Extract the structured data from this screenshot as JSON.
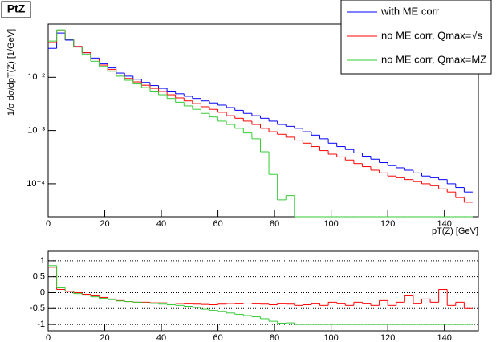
{
  "chart_data": [
    {
      "type": "histogram",
      "title": "PtZ",
      "y_label": "1/σ dσ/dpT(Z) [1/GeV]",
      "x_label": "pT(Z) [GeV]",
      "log_y": true,
      "legend": "top-right",
      "bins": [
        0,
        3,
        6,
        9,
        12,
        15,
        18,
        21,
        24,
        27,
        30,
        33,
        36,
        39,
        42,
        45,
        48,
        51,
        54,
        57,
        60,
        63,
        66,
        69,
        72,
        75,
        78,
        81,
        84,
        87,
        90,
        93,
        96,
        99,
        102,
        105,
        108,
        111,
        114,
        117,
        120,
        123,
        126,
        129,
        132,
        135,
        138,
        141,
        144,
        147,
        150
      ],
      "xlim": [
        0,
        152
      ],
      "xticks": [
        0,
        20,
        40,
        60,
        80,
        100,
        120,
        140
      ],
      "ylim": [
        2.4e-05,
        0.1
      ],
      "yticks": [
        {
          "value": 0.0001,
          "label": "10⁻⁴"
        },
        {
          "value": 0.001,
          "label": "10⁻³"
        },
        {
          "value": 0.01,
          "label": "10⁻²"
        }
      ],
      "series": [
        {
          "name": "with ME corr",
          "color": "#0000ff",
          "values": [
            0.035,
            0.068,
            0.05,
            0.038,
            0.029,
            0.023,
            0.018,
            0.015,
            0.012,
            0.0105,
            0.0092,
            0.008,
            0.007,
            0.0062,
            0.0055,
            0.0049,
            0.0044,
            0.004,
            0.0036,
            0.0033,
            0.003,
            0.0027,
            0.0024,
            0.0021,
            0.0019,
            0.0017,
            0.0015,
            0.0013,
            0.0012,
            0.0011,
            0.00095,
            0.00082,
            0.0007,
            0.00058,
            0.0005,
            0.00044,
            0.00038,
            0.00033,
            0.00029,
            0.00025,
            0.00022,
            0.0002,
            0.00018,
            0.00016,
            0.00014,
            0.00013,
            0.00012,
            0.0001,
            8.5e-05,
            7e-05
          ]
        },
        {
          "name": "no ME corr, Qmax=√s",
          "color": "#ff0000",
          "values": [
            0.045,
            0.075,
            0.052,
            0.038,
            0.029,
            0.022,
            0.017,
            0.014,
            0.011,
            0.0095,
            0.0082,
            0.0071,
            0.0062,
            0.0054,
            0.0047,
            0.0041,
            0.0036,
            0.0032,
            0.0028,
            0.0025,
            0.0022,
            0.0019,
            0.0017,
            0.0015,
            0.0013,
            0.0011,
            0.00095,
            0.00085,
            0.00075,
            0.00066,
            0.00058,
            0.0005,
            0.00042,
            0.00036,
            0.00032,
            0.00028,
            0.00024,
            0.00021,
            0.00018,
            0.00016,
            0.00014,
            0.00013,
            0.00012,
            0.00011,
            0.0001,
            9.2e-05,
            8e-05,
            7e-05,
            5.5e-05,
            4.5e-05
          ]
        },
        {
          "name": "no ME corr, Qmax=MZ",
          "color": "#33cc33",
          "values": [
            0.048,
            0.078,
            0.052,
            0.037,
            0.027,
            0.02,
            0.016,
            0.013,
            0.0105,
            0.0088,
            0.0075,
            0.0064,
            0.0055,
            0.0047,
            0.004,
            0.0034,
            0.0029,
            0.0025,
            0.0021,
            0.0018,
            0.0015,
            0.0013,
            0.0011,
            0.0009,
            0.0007,
            0.0004,
            0.00015,
            5e-05,
            6e-05,
            0,
            0,
            0,
            0,
            0,
            0,
            0,
            0,
            0,
            0,
            0,
            0,
            0,
            0,
            0,
            0,
            0,
            0,
            0,
            0,
            0
          ]
        }
      ]
    },
    {
      "type": "histogram",
      "grid": true,
      "bins": [
        0,
        3,
        6,
        9,
        12,
        15,
        18,
        21,
        24,
        27,
        30,
        33,
        36,
        39,
        42,
        45,
        48,
        51,
        54,
        57,
        60,
        63,
        66,
        69,
        72,
        75,
        78,
        81,
        84,
        87,
        90,
        93,
        96,
        99,
        102,
        105,
        108,
        111,
        114,
        117,
        120,
        123,
        126,
        129,
        132,
        135,
        138,
        141,
        144,
        147,
        150
      ],
      "xlim": [
        0,
        152
      ],
      "xticks": [
        0,
        20,
        40,
        60,
        80,
        100,
        120,
        140
      ],
      "ylim": [
        -1.2,
        1.3
      ],
      "yticks": [
        1,
        0.5,
        0,
        -0.5,
        -1
      ],
      "series": [
        {
          "color": "#ff0000",
          "values": [
            0.8,
            0.1,
            0.04,
            0,
            -0.05,
            -0.1,
            -0.15,
            -0.2,
            -0.25,
            -0.28,
            -0.3,
            -0.3,
            -0.32,
            -0.32,
            -0.33,
            -0.34,
            -0.35,
            -0.36,
            -0.37,
            -0.38,
            -0.36,
            -0.34,
            -0.35,
            -0.33,
            -0.35,
            -0.36,
            -0.38,
            -0.35,
            -0.36,
            -0.4,
            -0.38,
            -0.35,
            -0.4,
            -0.3,
            -0.35,
            -0.4,
            -0.3,
            -0.35,
            -0.4,
            -0.25,
            -0.4,
            -0.3,
            -0.1,
            -0.35,
            -0.2,
            -0.3,
            0.1,
            -0.4,
            -0.3,
            -0.5
          ]
        },
        {
          "color": "#33cc33",
          "values": [
            0.85,
            0.15,
            0.05,
            -0.03,
            -0.08,
            -0.13,
            -0.18,
            -0.22,
            -0.26,
            -0.28,
            -0.3,
            -0.32,
            -0.34,
            -0.36,
            -0.38,
            -0.4,
            -0.43,
            -0.47,
            -0.52,
            -0.56,
            -0.6,
            -0.64,
            -0.68,
            -0.72,
            -0.76,
            -0.82,
            -0.9,
            -0.96,
            -0.95,
            -1,
            -1,
            -1,
            -1,
            -1,
            -1,
            -1,
            -1,
            -1,
            -1,
            -1,
            -1,
            -1,
            -1,
            -1,
            -1,
            -1,
            -1,
            -1,
            -1,
            -1
          ]
        }
      ]
    }
  ]
}
